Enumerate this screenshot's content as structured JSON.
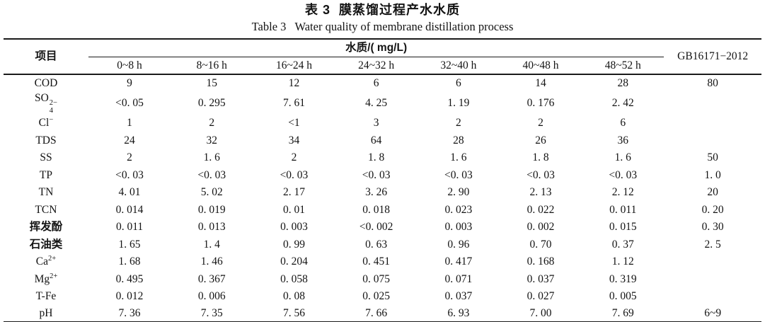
{
  "titles": {
    "cn": "表 3  膜蒸馏过程产水水质",
    "en": "Table 3   Water quality of membrane distillation process"
  },
  "table": {
    "header": {
      "item": "项目",
      "group": "水质/( mg/L)",
      "time_columns": [
        "0~8 h",
        "8~16 h",
        "16~24 h",
        "24~32 h",
        "32~40 h",
        "40~48 h",
        "48~52 h"
      ],
      "standard": "GB16171−2012"
    },
    "rows": [
      {
        "label": {
          "text": "COD"
        },
        "values": [
          "9",
          "15",
          "12",
          "6",
          "6",
          "14",
          "28"
        ],
        "gb": "80"
      },
      {
        "label": {
          "base": "SO",
          "stack_sup": "2−",
          "stack_sub": "4"
        },
        "values": [
          "<0. 05",
          "0. 295",
          "7. 61",
          "4. 25",
          "1. 19",
          "0. 176",
          "2. 42"
        ],
        "gb": ""
      },
      {
        "label": {
          "base": "Cl",
          "sup": "−"
        },
        "values": [
          "1",
          "2",
          "<1",
          "3",
          "2",
          "2",
          "6"
        ],
        "gb": ""
      },
      {
        "label": {
          "text": "TDS"
        },
        "values": [
          "24",
          "32",
          "34",
          "64",
          "28",
          "26",
          "36"
        ],
        "gb": ""
      },
      {
        "label": {
          "text": "SS"
        },
        "values": [
          "2",
          "1. 6",
          "2",
          "1. 8",
          "1. 6",
          "1. 8",
          "1. 6"
        ],
        "gb": "50"
      },
      {
        "label": {
          "text": "TP"
        },
        "values": [
          "<0. 03",
          "<0. 03",
          "<0. 03",
          "<0. 03",
          "<0. 03",
          "<0. 03",
          "<0. 03"
        ],
        "gb": "1. 0"
      },
      {
        "label": {
          "text": "TN"
        },
        "values": [
          "4. 01",
          "5. 02",
          "2. 17",
          "3. 26",
          "2. 90",
          "2. 13",
          "2. 12"
        ],
        "gb": "20"
      },
      {
        "label": {
          "text": "TCN"
        },
        "values": [
          "0. 014",
          "0. 019",
          "0. 01",
          "0. 018",
          "0. 023",
          "0. 022",
          "0. 011"
        ],
        "gb": "0. 20"
      },
      {
        "label": {
          "text": "挥发酚",
          "bold": true
        },
        "values": [
          "0. 011",
          "0. 013",
          "0. 003",
          "<0. 002",
          "0. 003",
          "0. 002",
          "0. 015"
        ],
        "gb": "0. 30"
      },
      {
        "label": {
          "text": "石油类",
          "bold": true
        },
        "values": [
          "1. 65",
          "1. 4",
          "0. 99",
          "0. 63",
          "0. 96",
          "0. 70",
          "0. 37"
        ],
        "gb": "2. 5"
      },
      {
        "label": {
          "base": "Ca",
          "sup": "2+"
        },
        "values": [
          "1. 68",
          "1. 46",
          "0. 204",
          "0. 451",
          "0. 417",
          "0. 168",
          "1. 12"
        ],
        "gb": ""
      },
      {
        "label": {
          "base": "Mg",
          "sup": "2+"
        },
        "values": [
          "0. 495",
          "0. 367",
          "0. 058",
          "0. 075",
          "0. 071",
          "0. 037",
          "0. 319"
        ],
        "gb": ""
      },
      {
        "label": {
          "text": "T-Fe"
        },
        "values": [
          "0. 012",
          "0. 006",
          "0. 08",
          "0. 025",
          "0. 037",
          "0. 027",
          "0. 005"
        ],
        "gb": ""
      },
      {
        "label": {
          "text": "pH"
        },
        "values": [
          "7. 36",
          "7. 35",
          "7. 56",
          "7. 66",
          "6. 93",
          "7. 00",
          "7. 69"
        ],
        "gb": "6~9"
      }
    ]
  }
}
